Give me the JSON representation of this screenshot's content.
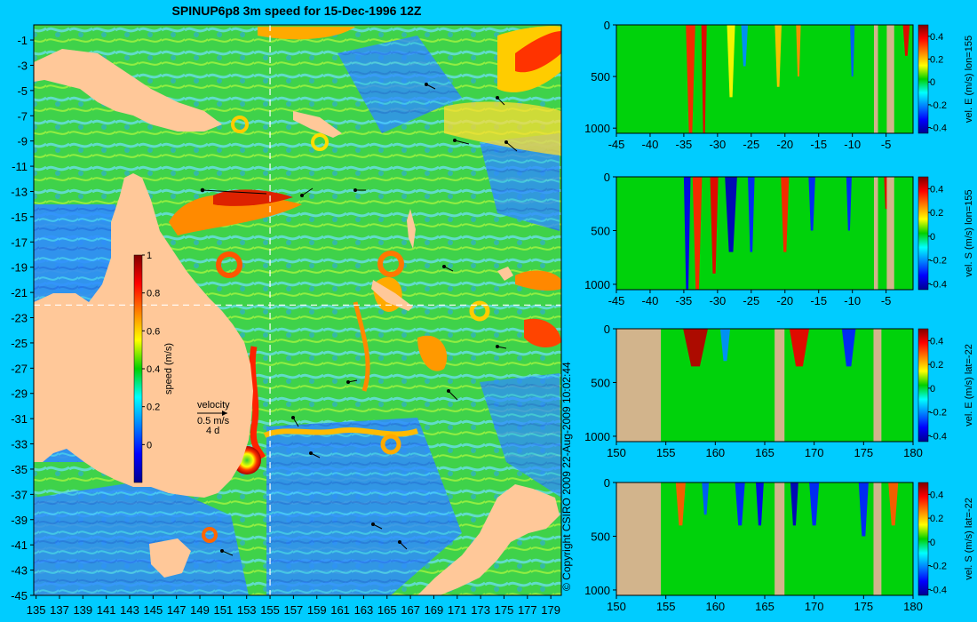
{
  "page": {
    "background": "#00ccff"
  },
  "map": {
    "title": "SPINUP6p8 3m speed for 15-Dec-1996 12Z",
    "land_color": "#ffc899",
    "xticks": [
      135,
      137,
      139,
      141,
      143,
      145,
      147,
      149,
      151,
      153,
      155,
      157,
      159,
      161,
      163,
      165,
      167,
      169,
      171,
      173,
      175,
      177,
      179
    ],
    "yticks": [
      -1,
      -3,
      -5,
      -7,
      -9,
      -11,
      -13,
      -15,
      -17,
      -19,
      -21,
      -23,
      -25,
      -27,
      -29,
      -31,
      -33,
      -35,
      -37,
      -39,
      -41,
      -43,
      -45
    ],
    "lon_range": [
      134.8,
      179.9
    ],
    "lat_range": [
      0.2,
      -45
    ],
    "guide_lon": 155,
    "guide_lat": -22,
    "colorbar": {
      "label": "speed (m/s)",
      "ticks": [
        "1",
        "0.8",
        "0.6",
        "0.4",
        "0.2",
        "0"
      ],
      "tick_values": [
        1,
        0.8,
        0.6,
        0.4,
        0.2,
        0
      ],
      "range": [
        -0.2,
        1.0
      ]
    },
    "velocity_key": {
      "title": "velocity",
      "speed": "0.5 m/s",
      "duration": "4 d"
    }
  },
  "copyright": "© Copyright CSIRO 2009   22-Aug-2009 10:02:44",
  "land_section_color": "#d2b48c",
  "chart_data": [
    {
      "type": "heatmap",
      "title": "",
      "xlabel": "",
      "ylabel": "",
      "colorbar_label": "vel. E (m/s) lon=155",
      "xticks": [
        "-45",
        "-40",
        "-35",
        "-30",
        "-25",
        "-20",
        "-15",
        "-10",
        "-5"
      ],
      "xtick_values": [
        -45,
        -40,
        -35,
        -30,
        -25,
        -20,
        -15,
        -10,
        -5
      ],
      "xlim": [
        -45,
        -1
      ],
      "yticks": [
        "0",
        "500",
        "1000"
      ],
      "ytick_values": [
        0,
        500,
        1000
      ],
      "ylim": [
        0,
        1050
      ],
      "cbar_ticks": [
        "0.4",
        "0.2",
        "0",
        "-0.2",
        "-0.4"
      ],
      "cbar_values": [
        0.4,
        0.2,
        0,
        -0.2,
        -0.4
      ],
      "cbar_range": [
        -0.45,
        0.5
      ],
      "land": [
        [
          -6.8,
          -6.2
        ],
        [
          -4.9,
          -3.8
        ]
      ],
      "features": [
        {
          "x": -34,
          "width": 1.4,
          "depth": 1050,
          "value": 0.35
        },
        {
          "x": -32,
          "width": 0.8,
          "depth": 1050,
          "value": 0.4
        },
        {
          "x": -28,
          "width": 1.2,
          "depth": 700,
          "value": 0.15
        },
        {
          "x": -26,
          "width": 1.0,
          "depth": 400,
          "value": -0.2
        },
        {
          "x": -21,
          "width": 1.0,
          "depth": 600,
          "value": 0.2
        },
        {
          "x": -18,
          "width": 0.7,
          "depth": 500,
          "value": 0.25
        },
        {
          "x": -10,
          "width": 0.7,
          "depth": 500,
          "value": -0.25
        },
        {
          "x": -2,
          "width": 1.0,
          "depth": 300,
          "value": 0.4
        }
      ]
    },
    {
      "type": "heatmap",
      "title": "",
      "xlabel": "",
      "ylabel": "",
      "colorbar_label": "vel. S (m/s) lon=155",
      "xticks": [
        "-45",
        "-40",
        "-35",
        "-30",
        "-25",
        "-20",
        "-15",
        "-10",
        "-5"
      ],
      "xtick_values": [
        -45,
        -40,
        -35,
        -30,
        -25,
        -20,
        -15,
        -10,
        -5
      ],
      "xlim": [
        -45,
        -1
      ],
      "yticks": [
        "0",
        "500",
        "1000"
      ],
      "ytick_values": [
        0,
        500,
        1000
      ],
      "ylim": [
        0,
        1050
      ],
      "cbar_ticks": [
        "0.4",
        "0.2",
        "0",
        "-0.2",
        "-0.4"
      ],
      "cbar_values": [
        0.4,
        0.2,
        0,
        -0.2,
        -0.4
      ],
      "cbar_range": [
        -0.45,
        0.5
      ],
      "land": [
        [
          -6.8,
          -6.2
        ],
        [
          -4.9,
          -3.8
        ]
      ],
      "features": [
        {
          "x": -34.5,
          "width": 1.0,
          "depth": 1050,
          "value": -0.35
        },
        {
          "x": -33,
          "width": 1.4,
          "depth": 1050,
          "value": 0.35
        },
        {
          "x": -30.5,
          "width": 1.2,
          "depth": 900,
          "value": 0.4
        },
        {
          "x": -28,
          "width": 1.8,
          "depth": 700,
          "value": -0.4
        },
        {
          "x": -25,
          "width": 1.0,
          "depth": 700,
          "value": -0.3
        },
        {
          "x": -20,
          "width": 1.2,
          "depth": 700,
          "value": 0.35
        },
        {
          "x": -16,
          "width": 1.0,
          "depth": 500,
          "value": -0.3
        },
        {
          "x": -10.5,
          "width": 0.8,
          "depth": 500,
          "value": -0.3
        },
        {
          "x": -5,
          "width": 0.6,
          "depth": 300,
          "value": 0.4
        }
      ]
    },
    {
      "type": "heatmap",
      "title": "",
      "xlabel": "",
      "ylabel": "",
      "colorbar_label": "vel. E (m/s) lat=-22",
      "xticks": [
        "150",
        "155",
        "160",
        "165",
        "170",
        "175",
        "180"
      ],
      "xtick_values": [
        150,
        155,
        160,
        165,
        170,
        175,
        180
      ],
      "xlim": [
        150,
        180
      ],
      "yticks": [
        "0",
        "500",
        "1000"
      ],
      "ytick_values": [
        0,
        500,
        1000
      ],
      "ylim": [
        0,
        1050
      ],
      "cbar_ticks": [
        "0.4",
        "0.2",
        "0",
        "-0.2",
        "-0.4"
      ],
      "cbar_values": [
        0.4,
        0.2,
        0,
        -0.2,
        -0.4
      ],
      "cbar_range": [
        -0.45,
        0.5
      ],
      "land": [
        [
          150,
          154.5
        ],
        [
          166,
          167
        ],
        [
          176,
          176.8
        ]
      ],
      "features": [
        {
          "x": 158,
          "width": 2.5,
          "depth": 350,
          "value": 0.45
        },
        {
          "x": 161,
          "width": 1.0,
          "depth": 300,
          "value": -0.2
        },
        {
          "x": 168.5,
          "width": 2.0,
          "depth": 350,
          "value": 0.4
        },
        {
          "x": 173.5,
          "width": 1.4,
          "depth": 350,
          "value": -0.3
        }
      ]
    },
    {
      "type": "heatmap",
      "title": "",
      "xlabel": "",
      "ylabel": "",
      "colorbar_label": "vel. S (m/s) lat=-22",
      "xticks": [
        "150",
        "155",
        "160",
        "165",
        "170",
        "175",
        "180"
      ],
      "xtick_values": [
        150,
        155,
        160,
        165,
        170,
        175,
        180
      ],
      "xlim": [
        150,
        180
      ],
      "yticks": [
        "0",
        "500",
        "1000"
      ],
      "ytick_values": [
        0,
        500,
        1000
      ],
      "ylim": [
        0,
        1050
      ],
      "cbar_ticks": [
        "0.4",
        "0.2",
        "0",
        "-0.2",
        "-0.4"
      ],
      "cbar_values": [
        0.4,
        0.2,
        0,
        -0.2,
        -0.4
      ],
      "cbar_range": [
        -0.45,
        0.5
      ],
      "land": [
        [
          150,
          154.5
        ],
        [
          166,
          167
        ],
        [
          176,
          176.8
        ]
      ],
      "features": [
        {
          "x": 156.5,
          "width": 1.0,
          "depth": 400,
          "value": 0.3
        },
        {
          "x": 159,
          "width": 0.7,
          "depth": 300,
          "value": -0.25
        },
        {
          "x": 162.5,
          "width": 1.0,
          "depth": 400,
          "value": -0.3
        },
        {
          "x": 164.5,
          "width": 0.8,
          "depth": 400,
          "value": -0.35
        },
        {
          "x": 168,
          "width": 0.8,
          "depth": 400,
          "value": -0.4
        },
        {
          "x": 170,
          "width": 1.0,
          "depth": 400,
          "value": -0.3
        },
        {
          "x": 175,
          "width": 1.0,
          "depth": 500,
          "value": -0.3
        },
        {
          "x": 178,
          "width": 1.0,
          "depth": 400,
          "value": 0.3
        }
      ]
    }
  ]
}
